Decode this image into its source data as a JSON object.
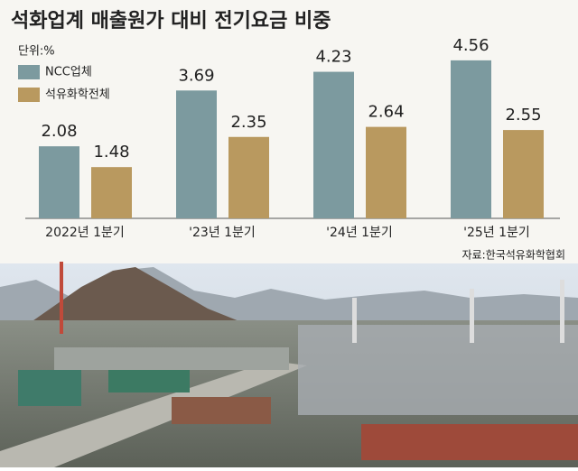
{
  "chart_data": {
    "type": "bar",
    "title": "석화업계 매출원가 대비 전기요금 비중",
    "unit": "단위:%",
    "categories": [
      "2022년 1분기",
      "'23년 1분기",
      "'24년 1분기",
      "'25년 1분기"
    ],
    "series": [
      {
        "name": "NCC업체",
        "color": "#7c9a9f",
        "values": [
          2.08,
          3.69,
          4.23,
          4.56
        ]
      },
      {
        "name": "석유화학전체",
        "color": "#b9995f",
        "values": [
          1.48,
          2.35,
          2.64,
          2.55
        ]
      }
    ],
    "source": "자료:한국석유화학협회"
  }
}
